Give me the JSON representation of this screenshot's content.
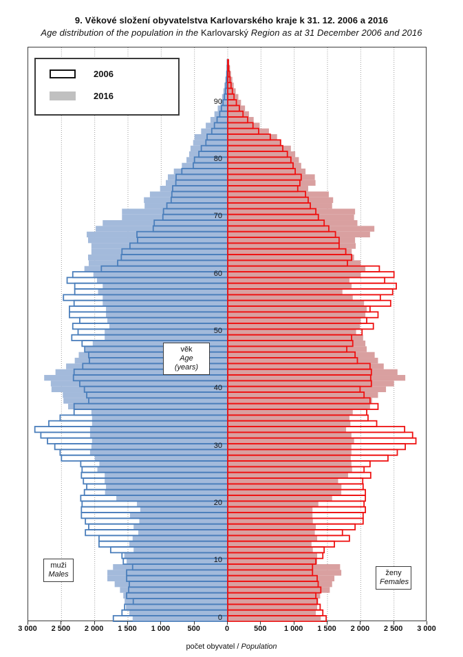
{
  "header": {
    "title": "9. Věkové složení obyvatelstva  Karlovarského  kraje k 31. 12. 2006  a 2016",
    "subtitle": {
      "pre": "Age distribution of the population  in the ",
      "mid": "Karlovarský",
      "post": " Region  as at 31 December  2006 and 2016"
    }
  },
  "legend": {
    "items": [
      {
        "label": "2006",
        "swatch": "outline"
      },
      {
        "label": "2016",
        "swatch": "gray-fill"
      }
    ],
    "swatch_gray": "#c0c0c0"
  },
  "annotations": {
    "age_box": {
      "line1": "věk",
      "line2": "Age (years)"
    },
    "males_box": {
      "line1": "muži",
      "line2": "Males"
    },
    "females_box": {
      "line1": "ženy",
      "line2": "Females"
    }
  },
  "x_axis": {
    "tick_labels": [
      "3 000",
      "2 500",
      "2 000",
      "1 500",
      "1 000",
      "500",
      "0",
      "500",
      "1 000",
      "1 500",
      "2 000",
      "2 500",
      "3 000"
    ],
    "tick_values": [
      -3000,
      -2500,
      -2000,
      -1500,
      -1000,
      -500,
      0,
      500,
      1000,
      1500,
      2000,
      2500,
      3000
    ],
    "title_pre": "počet obyvatel / ",
    "title_italic": "Population",
    "max": 3000
  },
  "y_axis": {
    "tick_values": [
      0,
      10,
      20,
      30,
      40,
      50,
      60,
      70,
      80,
      90
    ],
    "max_age": 100
  },
  "colors": {
    "male_2006_stroke": "#4a7ebb",
    "male_2016_fill": "#a3badb",
    "female_2006_stroke": "#ee1111",
    "female_2016_fill": "#d9a0a0",
    "grid": "#999999"
  },
  "chart_data": {
    "type": "bar",
    "subtype": "population-pyramid",
    "title": "9. Věkové složení obyvatelstva Karlovarského kraje k 31. 12. 2006 a 2016",
    "xlabel": "počet obyvatel / Population",
    "ylabel": "věk / Age (years)",
    "xlim_per_side": [
      0,
      3000
    ],
    "grid": "vertical-dotted-every-500",
    "legend_position": "top-left",
    "ages": "0 to 97 by 1 year, index = age",
    "series": [
      {
        "name": "males-2006",
        "side": "left",
        "style": "outline",
        "values": [
          1720,
          1590,
          1550,
          1420,
          1520,
          1490,
          1480,
          1520,
          1520,
          1430,
          1570,
          1590,
          1760,
          1935,
          1935,
          2140,
          2090,
          2140,
          2200,
          2200,
          2190,
          2210,
          2155,
          2120,
          2170,
          2200,
          2190,
          2210,
          2500,
          2520,
          2600,
          2710,
          2810,
          2900,
          2690,
          2520,
          2310,
          2310,
          2090,
          2120,
          2155,
          2225,
          2320,
          2310,
          2180,
          2080,
          2090,
          2150,
          2190,
          2345,
          2250,
          2330,
          2225,
          2380,
          2380,
          2310,
          2470,
          2300,
          2300,
          2415,
          2330,
          1900,
          1655,
          1600,
          1590,
          1470,
          1355,
          1365,
          1120,
          1105,
          975,
          966,
          915,
          850,
          840,
          828,
          780,
          776,
          690,
          518,
          500,
          434,
          397,
          328,
          310,
          240,
          200,
          160,
          120,
          95,
          70,
          50,
          35,
          25,
          18,
          12,
          8,
          5
        ]
      },
      {
        "name": "males-2016",
        "side": "left",
        "style": "fill",
        "values": [
          1430,
          1480,
          1530,
          1550,
          1570,
          1620,
          1700,
          1810,
          1810,
          1725,
          1520,
          1555,
          1415,
          1480,
          1430,
          1345,
          1415,
          1330,
          1470,
          1315,
          1365,
          1675,
          1845,
          1830,
          1850,
          1850,
          1960,
          1930,
          2000,
          2070,
          2050,
          2040,
          2070,
          2070,
          2040,
          2040,
          2050,
          2400,
          2470,
          2480,
          2650,
          2660,
          2760,
          2590,
          2430,
          2300,
          2240,
          2140,
          2030,
          1850,
          1850,
          1780,
          1810,
          1830,
          1830,
          1880,
          1880,
          1950,
          1880,
          1966,
          2020,
          2155,
          2090,
          2100,
          2050,
          2050,
          2100,
          2120,
          1985,
          1880,
          1590,
          1590,
          1250,
          1260,
          1170,
          1017,
          931,
          900,
          810,
          690,
          620,
          580,
          560,
          520,
          500,
          400,
          330,
          260,
          200,
          150,
          110,
          85,
          65,
          50,
          35,
          25,
          15,
          8
        ]
      },
      {
        "name": "females-2006",
        "side": "right",
        "style": "outline",
        "values": [
          1480,
          1430,
          1390,
          1345,
          1325,
          1400,
          1360,
          1345,
          1275,
          1275,
          1325,
          1430,
          1450,
          1604,
          1830,
          1725,
          1915,
          2036,
          2036,
          2070,
          2050,
          2070,
          2070,
          2036,
          2030,
          2150,
          2050,
          2140,
          2410,
          2550,
          2670,
          2830,
          2780,
          2660,
          2240,
          2110,
          2090,
          2260,
          2140,
          2050,
          1990,
          2160,
          2150,
          2160,
          2140,
          1950,
          1915,
          1790,
          1880,
          1863,
          2020,
          2190,
          2090,
          2260,
          2140,
          2450,
          2295,
          2480,
          2535,
          2360,
          2500,
          2280,
          1800,
          1863,
          1775,
          1675,
          1675,
          1620,
          1520,
          1450,
          1363,
          1325,
          1242,
          1210,
          1170,
          1053,
          1085,
          1105,
          1015,
          983,
          950,
          897,
          828,
          794,
          640,
          465,
          380,
          300,
          230,
          175,
          130,
          95,
          70,
          50,
          35,
          25,
          15,
          10
        ]
      },
      {
        "name": "females-2016",
        "side": "right",
        "style": "fill",
        "values": [
          1400,
          1325,
          1345,
          1360,
          1390,
          1535,
          1570,
          1604,
          1708,
          1690,
          1345,
          1345,
          1280,
          1260,
          1345,
          1310,
          1325,
          1280,
          1275,
          1275,
          1363,
          1570,
          1708,
          1710,
          1660,
          1810,
          1870,
          1860,
          1850,
          1860,
          1860,
          1900,
          1860,
          1780,
          1845,
          1830,
          1880,
          2140,
          2170,
          2260,
          2380,
          2500,
          2670,
          2553,
          2346,
          2260,
          2210,
          2090,
          2070,
          2036,
          1930,
          1990,
          2000,
          2070,
          2090,
          2050,
          1880,
          1725,
          1863,
          1830,
          2000,
          2070,
          2000,
          1900,
          1865,
          1925,
          1915,
          2140,
          2205,
          1950,
          1900,
          1915,
          1570,
          1585,
          1520,
          1210,
          1320,
          1310,
          1170,
          1105,
          1070,
          1015,
          950,
          805,
          742,
          620,
          480,
          390,
          320,
          260,
          200,
          160,
          120,
          90,
          70,
          50,
          35,
          22
        ]
      }
    ]
  }
}
